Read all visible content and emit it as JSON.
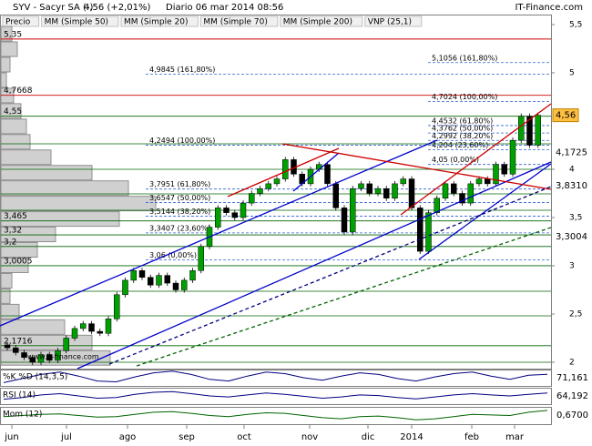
{
  "chart_data": {
    "type": "candlestick",
    "header": {
      "symbol": "SYV - Sacyr SA (-)",
      "last": "4,56 (+2,01%)",
      "period": "Diario 06 mar 2014 08:56",
      "brand": "IT-Finance.com"
    },
    "legend": [
      {
        "name": "Precio",
        "color": "#000000"
      },
      {
        "name": "MM (Simple 50)",
        "color": "#808080"
      },
      {
        "name": "MM (Simple 20)",
        "color": "#cc0000"
      },
      {
        "name": "MM (Simple 70)",
        "color": "#000080"
      },
      {
        "name": "MM (Simple 200)",
        "color": "#006400"
      },
      {
        "name": "VNP (25,1)",
        "color": "#c0c0c0"
      }
    ],
    "watermark": "www.it-finance.com",
    "months": [
      "jun",
      "jul",
      "ago",
      "sep",
      "oct",
      "nov",
      "dic",
      "2014",
      "feb",
      "mar"
    ],
    "open": [
      2.18,
      2.15,
      2.1,
      2.05,
      2.0,
      2.08,
      2.02,
      2.12,
      2.25,
      2.35,
      2.4,
      2.32,
      2.3,
      2.45,
      2.7,
      2.85,
      2.95,
      2.88,
      2.8,
      2.9,
      2.82,
      2.75,
      2.85,
      2.95,
      3.2,
      3.4,
      3.6,
      3.55,
      3.5,
      3.65,
      3.75,
      3.8,
      3.85,
      3.9,
      4.1,
      3.95,
      3.85,
      4.0,
      4.05,
      3.85,
      3.6,
      3.35,
      3.8,
      3.85,
      3.75,
      3.8,
      3.7,
      3.85,
      3.9,
      3.6,
      3.15,
      3.55,
      3.7,
      3.85,
      3.75,
      3.65,
      3.85,
      3.9,
      3.85,
      4.05,
      3.95,
      4.3,
      4.55,
      4.25
    ],
    "close": [
      2.15,
      2.1,
      2.05,
      2.0,
      2.08,
      2.02,
      2.12,
      2.25,
      2.35,
      2.4,
      2.32,
      2.3,
      2.45,
      2.7,
      2.85,
      2.95,
      2.88,
      2.8,
      2.9,
      2.82,
      2.75,
      2.85,
      2.95,
      3.2,
      3.4,
      3.6,
      3.55,
      3.5,
      3.65,
      3.75,
      3.8,
      3.85,
      3.9,
      4.1,
      3.95,
      3.85,
      4.0,
      4.05,
      3.85,
      3.6,
      3.35,
      3.8,
      3.85,
      3.75,
      3.8,
      3.7,
      3.85,
      3.9,
      3.6,
      3.15,
      3.55,
      3.7,
      3.85,
      3.75,
      3.65,
      3.85,
      3.9,
      3.85,
      4.05,
      3.95,
      4.3,
      4.55,
      4.25,
      4.56
    ],
    "up_color": "#00a000",
    "down_color": "#000000",
    "ylim": [
      1.934,
      5.594
    ],
    "yticks": [
      2,
      {
        "value": 2.5,
        "label": "2,5"
      },
      3,
      {
        "value": 3.5,
        "label": "3,5"
      },
      4,
      5,
      {
        "value": 5.5,
        "label": "5,5"
      }
    ],
    "volume_profile": {
      "prices": [
        5.4,
        5.24,
        5.08,
        4.92,
        4.76,
        4.6,
        4.44,
        4.28,
        4.12,
        3.96,
        3.8,
        3.64,
        3.48,
        3.32,
        3.16,
        3.0,
        2.84,
        2.68,
        2.52,
        2.36,
        2.2,
        2.04
      ],
      "volumes": [
        12,
        18,
        10,
        6,
        14,
        22,
        28,
        32,
        55,
        100,
        140,
        170,
        130,
        60,
        40,
        30,
        12,
        10,
        20,
        70,
        100,
        120
      ]
    },
    "price_levels": [
      {
        "value": 5.35,
        "label": "5,35",
        "color": "#cc0000"
      },
      {
        "value": 4.7668,
        "label": "4,7668",
        "color": "#cc0000"
      },
      {
        "value": 4.55,
        "label": "4,55",
        "color": "#006400"
      },
      {
        "value": 3.465,
        "label": "3,465",
        "color": "#006400"
      },
      {
        "value": 3.32,
        "label": "3,32",
        "color": "#006400"
      },
      {
        "value": 3.2,
        "label": "3,2",
        "color": "#006400"
      },
      {
        "value": 3.0005,
        "label": "3,0005",
        "color": "#006400"
      },
      {
        "value": 2.1716,
        "label": "2,1716",
        "color": "#006400"
      }
    ],
    "support_lines": [
      4.264,
      4.0,
      3.745,
      3.575,
      2.736,
      2.481,
      2.0
    ],
    "fib_sets": [
      {
        "levels": [
          {
            "value": 5.1056,
            "label": "5,1056 (161,80%)"
          },
          {
            "value": 4.7024,
            "label": "4,7024 (100,00%)"
          },
          {
            "value": 4.4532,
            "label": "4,4532 (61,80%)"
          },
          {
            "value": 4.3762,
            "label": "4,3762 (50,00%)"
          },
          {
            "value": 4.2992,
            "label": "4,2992 (38,20%)"
          },
          {
            "value": 4.204,
            "label": "4,204 (23,60%)"
          },
          {
            "value": 4.05,
            "label": "4,05 (0,00%)"
          }
        ]
      },
      {
        "levels": [
          {
            "value": 4.9845,
            "label": "4,9845 (161,80%)"
          },
          {
            "value": 4.2494,
            "label": "4,2494 (100,00%)"
          },
          {
            "value": 3.7951,
            "label": "3,7951 (61,80%)"
          },
          {
            "value": 3.6547,
            "label": "3,6547 (50,00%)"
          },
          {
            "value": 3.5144,
            "label": "3,5144 (38,20%)"
          },
          {
            "value": 3.3407,
            "label": "3,3407 (23,60%)"
          },
          {
            "value": 3.06,
            "label": "3,06 (0,00%)"
          }
        ]
      }
    ],
    "price_tags": [
      {
        "value": 4.56,
        "label": "4,56",
        "color": "#000000",
        "box": "#ffc040"
      },
      {
        "value": 4.1725,
        "label": "4,1725",
        "color": "#cc0000"
      },
      {
        "value": 3.831,
        "label": "3,8310",
        "color": "#000080"
      },
      {
        "value": 3.3004,
        "label": "3,3004",
        "color": "#006400"
      }
    ],
    "panels": [
      {
        "title": "%K %D (14,3,5)",
        "ylim": [
          0,
          100
        ],
        "values": [
          20,
          45,
          70,
          85,
          60,
          30,
          25,
          55,
          80,
          90,
          70,
          40,
          30,
          60,
          85,
          75,
          50,
          35,
          60,
          80,
          70,
          45,
          30,
          55,
          75,
          85,
          60,
          40,
          65,
          71
        ],
        "last": {
          "value": 71.161,
          "label": "71,161"
        },
        "color": "#000080"
      },
      {
        "title": "RSI (14)",
        "ylim": [
          30,
          80
        ],
        "values": [
          45,
          50,
          58,
          62,
          55,
          48,
          50,
          60,
          66,
          68,
          62,
          55,
          52,
          58,
          64,
          60,
          54,
          48,
          52,
          58,
          56,
          50,
          46,
          52,
          58,
          62,
          58,
          55,
          60,
          64
        ],
        "last": {
          "value": 64.192,
          "label": "64,192"
        },
        "color": "#000080"
      },
      {
        "title": "Mom (12)",
        "ylim": [
          -0.6,
          1.0
        ],
        "values": [
          0.1,
          0.2,
          0.3,
          0.35,
          0.2,
          0.05,
          0.1,
          0.3,
          0.5,
          0.55,
          0.4,
          0.2,
          0.1,
          0.3,
          0.45,
          0.4,
          0.2,
          0.0,
          -0.1,
          0.1,
          0.15,
          0.0,
          -0.2,
          -0.1,
          0.1,
          0.3,
          0.25,
          0.2,
          0.5,
          0.67
        ],
        "last": {
          "value": 0.67,
          "label": "0,6700"
        },
        "color": "#006400"
      }
    ]
  }
}
